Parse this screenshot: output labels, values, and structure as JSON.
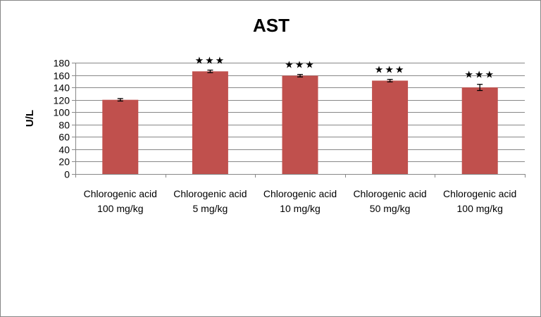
{
  "chart_data": {
    "type": "bar",
    "title": "AST",
    "ylabel": "U/L",
    "xlabel": "",
    "ylim": [
      0,
      180
    ],
    "yticks": [
      0,
      20,
      40,
      60,
      80,
      100,
      120,
      140,
      160,
      180
    ],
    "grid": true,
    "legend": "none",
    "bar_color": "#C0504D",
    "categories": [
      [
        "Chlorogenic acid",
        "100 mg/kg"
      ],
      [
        "Chlorogenic acid",
        "5 mg/kg"
      ],
      [
        "Chlorogenic acid",
        "10 mg/kg"
      ],
      [
        "Chlorogenic acid",
        "50 mg/kg"
      ],
      [
        "Chlorogenic acid",
        "100 mg/kg"
      ]
    ],
    "values": [
      120,
      166,
      159,
      151,
      140
    ],
    "errors": [
      2,
      2,
      2,
      2,
      5
    ],
    "annotations": [
      "",
      "★★★",
      "★★★",
      "★★★",
      "★★★"
    ]
  }
}
